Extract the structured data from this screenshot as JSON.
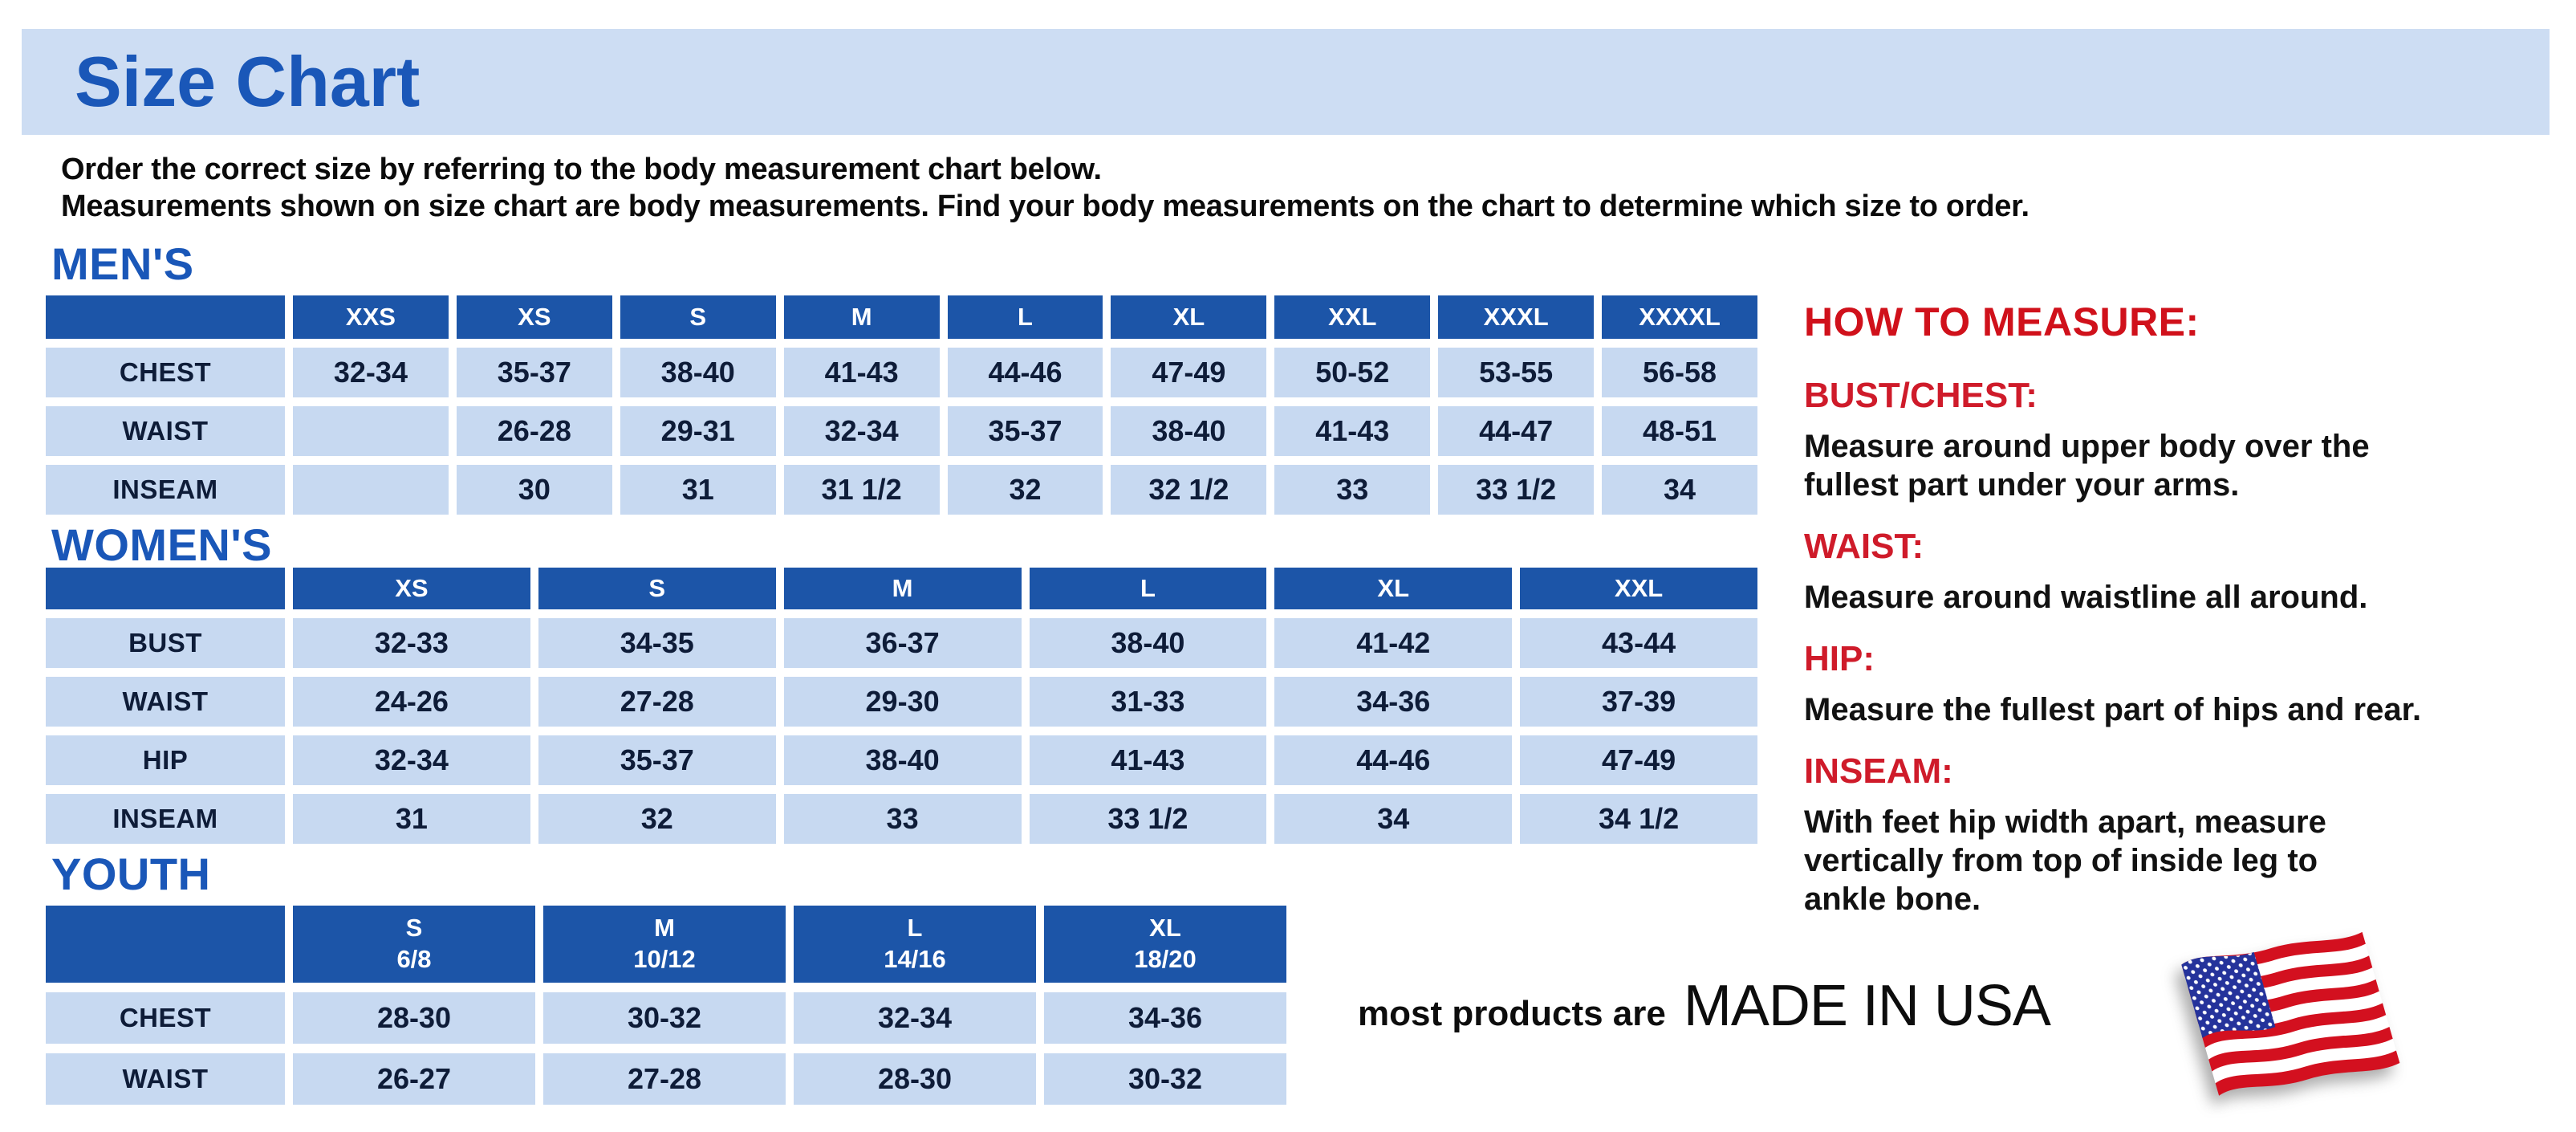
{
  "title": "Size Chart",
  "intro": {
    "line1": "Order the correct size by referring to the body measurement chart below.",
    "line2": "Measurements shown on size chart are body measurements.  Find your body measurements on the chart to determine which size to order."
  },
  "tables": {
    "mens": {
      "heading": "MEN'S",
      "columns": [
        "XXS",
        "XS",
        "S",
        "M",
        "L",
        "XL",
        "XXL",
        "XXXL",
        "XXXXL"
      ],
      "rows": [
        {
          "label": "CHEST",
          "values": [
            "32-34",
            "35-37",
            "38-40",
            "41-43",
            "44-46",
            "47-49",
            "50-52",
            "53-55",
            "56-58"
          ]
        },
        {
          "label": "WAIST",
          "values": [
            "",
            "26-28",
            "29-31",
            "32-34",
            "35-37",
            "38-40",
            "41-43",
            "44-47",
            "48-51"
          ]
        },
        {
          "label": "INSEAM",
          "values": [
            "",
            "30",
            "31",
            "31 1/2",
            "32",
            "32 1/2",
            "33",
            "33 1/2",
            "34"
          ]
        }
      ]
    },
    "womens": {
      "heading": "WOMEN'S",
      "columns": [
        "XS",
        "S",
        "M",
        "L",
        "XL",
        "XXL"
      ],
      "rows": [
        {
          "label": "BUST",
          "values": [
            "32-33",
            "34-35",
            "36-37",
            "38-40",
            "41-42",
            "43-44"
          ]
        },
        {
          "label": "WAIST",
          "values": [
            "24-26",
            "27-28",
            "29-30",
            "31-33",
            "34-36",
            "37-39"
          ]
        },
        {
          "label": "HIP",
          "values": [
            "32-34",
            "35-37",
            "38-40",
            "41-43",
            "44-46",
            "47-49"
          ]
        },
        {
          "label": "INSEAM",
          "values": [
            "31",
            "32",
            "33",
            "33 1/2",
            "34",
            "34 1/2"
          ]
        }
      ]
    },
    "youth": {
      "heading": "YOUTH",
      "columns": [
        {
          "size": "S",
          "range": "6/8"
        },
        {
          "size": "M",
          "range": "10/12"
        },
        {
          "size": "L",
          "range": "14/16"
        },
        {
          "size": "XL",
          "range": "18/20"
        }
      ],
      "rows": [
        {
          "label": "CHEST",
          "values": [
            "28-30",
            "30-32",
            "32-34",
            "34-36"
          ]
        },
        {
          "label": "WAIST",
          "values": [
            "26-27",
            "27-28",
            "28-30",
            "30-32"
          ]
        }
      ]
    }
  },
  "how_to_measure": {
    "heading": "HOW TO MEASURE:",
    "items": [
      {
        "label": "BUST/CHEST:",
        "text": "Measure around upper body over the\nfullest part under your arms."
      },
      {
        "label": "WAIST:",
        "text": "Measure around waistline all around."
      },
      {
        "label": "HIP:",
        "text": "Measure the fullest part of hips and rear."
      },
      {
        "label": "INSEAM:",
        "text": "With feet hip width apart, measure\nvertically from top of inside leg to\nankle bone."
      }
    ]
  },
  "made_in_usa": {
    "prefix": "most products are",
    "emphasis": "MADE IN USA"
  },
  "icons": [
    {
      "name": "usa-flag-icon",
      "description": "waving american flag"
    }
  ],
  "colors": {
    "banner_background": "#cdddf3",
    "heading_blue": "#1a57b8",
    "table_header_blue": "#1c55a8",
    "table_cell_blue": "#c7d9f1",
    "table_text_navy": "#0e1c38",
    "measure_red": "#d0111b",
    "flag_red": "#d3101f",
    "flag_navy": "#25339b"
  }
}
